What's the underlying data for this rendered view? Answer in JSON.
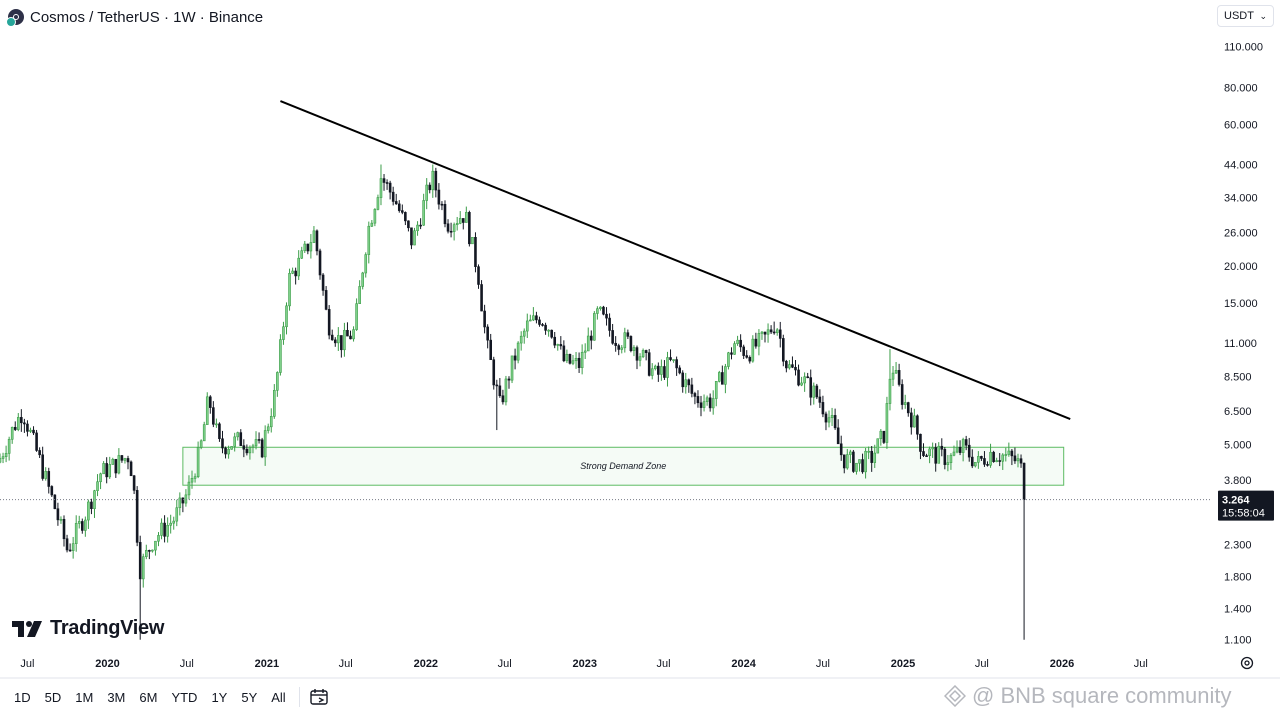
{
  "header": {
    "title": "Cosmos / TetherUS · 1W · Binance"
  },
  "currency_selector": {
    "label": "USDT"
  },
  "logo": {
    "text": "TradingView"
  },
  "timeframes": [
    "1D",
    "5D",
    "1M",
    "3M",
    "6M",
    "YTD",
    "1Y",
    "5Y",
    "All"
  ],
  "watermark": {
    "text": "@ BNB square community"
  },
  "colors": {
    "up": "#26a69a",
    "down": "#131722",
    "upFill": "#7fd08a",
    "zoneStroke": "#5dbb63",
    "trendline": "#000000",
    "axisText": "#131722",
    "priceTag": "#131722"
  },
  "chart_data": {
    "type": "candlestick",
    "scale": "log",
    "ylim": [
      1.0,
      125.0
    ],
    "price_ticks": [
      110,
      80,
      60,
      44,
      34,
      26,
      20,
      15,
      11,
      8.5,
      6.5,
      5,
      3.8,
      2.3,
      1.8,
      1.4,
      1.1
    ],
    "price_tick_labels": [
      "110.000",
      "80.000",
      "60.000",
      "44.000",
      "34.000",
      "26.000",
      "20.000",
      "15.000",
      "11.000",
      "8.500",
      "6.500",
      "5.000",
      "3.800",
      "2.300",
      "1.800",
      "1.400",
      "1.100"
    ],
    "x_ticks": [
      {
        "date": "2019-07-01",
        "label": "Jul",
        "bold": false
      },
      {
        "date": "2020-01-01",
        "label": "2020",
        "bold": true
      },
      {
        "date": "2020-07-01",
        "label": "Jul",
        "bold": false
      },
      {
        "date": "2021-01-01",
        "label": "2021",
        "bold": true
      },
      {
        "date": "2021-07-01",
        "label": "Jul",
        "bold": false
      },
      {
        "date": "2022-01-01",
        "label": "2022",
        "bold": true
      },
      {
        "date": "2022-07-01",
        "label": "Jul",
        "bold": false
      },
      {
        "date": "2023-01-01",
        "label": "2023",
        "bold": true
      },
      {
        "date": "2023-07-01",
        "label": "Jul",
        "bold": false
      },
      {
        "date": "2024-01-01",
        "label": "2024",
        "bold": true
      },
      {
        "date": "2024-07-01",
        "label": "Jul",
        "bold": false
      },
      {
        "date": "2025-01-01",
        "label": "2025",
        "bold": true
      },
      {
        "date": "2025-07-01",
        "label": "Jul",
        "bold": false
      },
      {
        "date": "2026-01-01",
        "label": "2026",
        "bold": true
      },
      {
        "date": "2026-07-01",
        "label": "Jul",
        "bold": false
      }
    ],
    "x_range": [
      "2019-04-29",
      "2026-12-07"
    ],
    "price_path": [
      {
        "date": "2019-04-29",
        "price": 4.5
      },
      {
        "date": "2019-06-01",
        "price": 5.8
      },
      {
        "date": "2019-06-20",
        "price": 6.5
      },
      {
        "date": "2019-08-01",
        "price": 4.3
      },
      {
        "date": "2019-09-01",
        "price": 3.1
      },
      {
        "date": "2019-10-01",
        "price": 2.2
      },
      {
        "date": "2019-11-15",
        "price": 3.0
      },
      {
        "date": "2019-12-15",
        "price": 4.0
      },
      {
        "date": "2020-01-20",
        "price": 4.3
      },
      {
        "date": "2020-02-20",
        "price": 4.6
      },
      {
        "date": "2020-03-01",
        "price": 3.6
      },
      {
        "date": "2020-03-15",
        "price": 1.9
      },
      {
        "date": "2020-04-15",
        "price": 2.4
      },
      {
        "date": "2020-06-01",
        "price": 2.8
      },
      {
        "date": "2020-07-01",
        "price": 3.4
      },
      {
        "date": "2020-08-01",
        "price": 4.8
      },
      {
        "date": "2020-08-20",
        "price": 7.2
      },
      {
        "date": "2020-09-15",
        "price": 4.9
      },
      {
        "date": "2020-11-01",
        "price": 5.2
      },
      {
        "date": "2020-12-20",
        "price": 4.8
      },
      {
        "date": "2021-01-20",
        "price": 7.5
      },
      {
        "date": "2021-02-20",
        "price": 18
      },
      {
        "date": "2021-03-20",
        "price": 21
      },
      {
        "date": "2021-04-20",
        "price": 26
      },
      {
        "date": "2021-05-20",
        "price": 13
      },
      {
        "date": "2021-06-20",
        "price": 11
      },
      {
        "date": "2021-07-20",
        "price": 12
      },
      {
        "date": "2021-08-20",
        "price": 26
      },
      {
        "date": "2021-09-20",
        "price": 40
      },
      {
        "date": "2021-10-20",
        "price": 34
      },
      {
        "date": "2021-12-01",
        "price": 24
      },
      {
        "date": "2022-01-15",
        "price": 40
      },
      {
        "date": "2022-02-20",
        "price": 28
      },
      {
        "date": "2022-04-01",
        "price": 30
      },
      {
        "date": "2022-05-01",
        "price": 19
      },
      {
        "date": "2022-05-20",
        "price": 11
      },
      {
        "date": "2022-06-20",
        "price": 6.8
      },
      {
        "date": "2022-07-20",
        "price": 9.5
      },
      {
        "date": "2022-08-20",
        "price": 12.5
      },
      {
        "date": "2022-09-20",
        "price": 13.5
      },
      {
        "date": "2022-10-20",
        "price": 12
      },
      {
        "date": "2022-11-15",
        "price": 9.5
      },
      {
        "date": "2022-12-20",
        "price": 9.3
      },
      {
        "date": "2023-02-01",
        "price": 14
      },
      {
        "date": "2023-03-10",
        "price": 11.5
      },
      {
        "date": "2023-04-20",
        "price": 11
      },
      {
        "date": "2023-06-15",
        "price": 8.5
      },
      {
        "date": "2023-07-20",
        "price": 9.5
      },
      {
        "date": "2023-09-10",
        "price": 7.2
      },
      {
        "date": "2023-10-20",
        "price": 7.0
      },
      {
        "date": "2023-12-10",
        "price": 11
      },
      {
        "date": "2024-01-10",
        "price": 10.2
      },
      {
        "date": "2024-02-20",
        "price": 11.5
      },
      {
        "date": "2024-03-15",
        "price": 13
      },
      {
        "date": "2024-04-10",
        "price": 9.2
      },
      {
        "date": "2024-05-10",
        "price": 8.5
      },
      {
        "date": "2024-06-20",
        "price": 7.2
      },
      {
        "date": "2024-07-20",
        "price": 6.0
      },
      {
        "date": "2024-08-15",
        "price": 4.5
      },
      {
        "date": "2024-09-20",
        "price": 4.3
      },
      {
        "date": "2024-10-20",
        "price": 4.5
      },
      {
        "date": "2024-11-20",
        "price": 5.5
      },
      {
        "date": "2024-12-05",
        "price": 9.5
      },
      {
        "date": "2024-12-25",
        "price": 7.5
      },
      {
        "date": "2025-01-25",
        "price": 6.0
      },
      {
        "date": "2025-02-15",
        "price": 4.8
      },
      {
        "date": "2025-03-20",
        "price": 4.6
      },
      {
        "date": "2025-04-20",
        "price": 4.5
      },
      {
        "date": "2025-05-20",
        "price": 4.9
      },
      {
        "date": "2025-06-20",
        "price": 4.3
      },
      {
        "date": "2025-07-20",
        "price": 4.7
      },
      {
        "date": "2025-08-20",
        "price": 4.6
      },
      {
        "date": "2025-09-20",
        "price": 4.4
      },
      {
        "date": "2025-10-05",
        "price": 4.0
      },
      {
        "date": "2025-10-10",
        "price": 3.264
      }
    ],
    "notable_lows": [
      {
        "date": "2020-03-16",
        "price": 1.1
      },
      {
        "date": "2022-06-13",
        "price": 5.6
      },
      {
        "date": "2025-10-06",
        "price": 1.1
      }
    ],
    "notable_highs": [
      {
        "date": "2021-09-20",
        "price": 44
      },
      {
        "date": "2022-01-17",
        "price": 44
      },
      {
        "date": "2024-03-11",
        "price": 13
      },
      {
        "date": "2024-12-02",
        "price": 10.5
      }
    ],
    "trendline": {
      "start": {
        "date": "2021-02-01",
        "price": 72
      },
      "end": {
        "date": "2026-01-20",
        "price": 6.1
      }
    },
    "zone": {
      "label": "Strong Demand Zone",
      "start": "2020-06-22",
      "end": "2026-01-05",
      "top": 4.9,
      "bottom": 3.65
    },
    "last_price": {
      "value": 3.264,
      "label": "3.264",
      "countdown": "15:58:04",
      "date": "2025-10-06"
    }
  }
}
